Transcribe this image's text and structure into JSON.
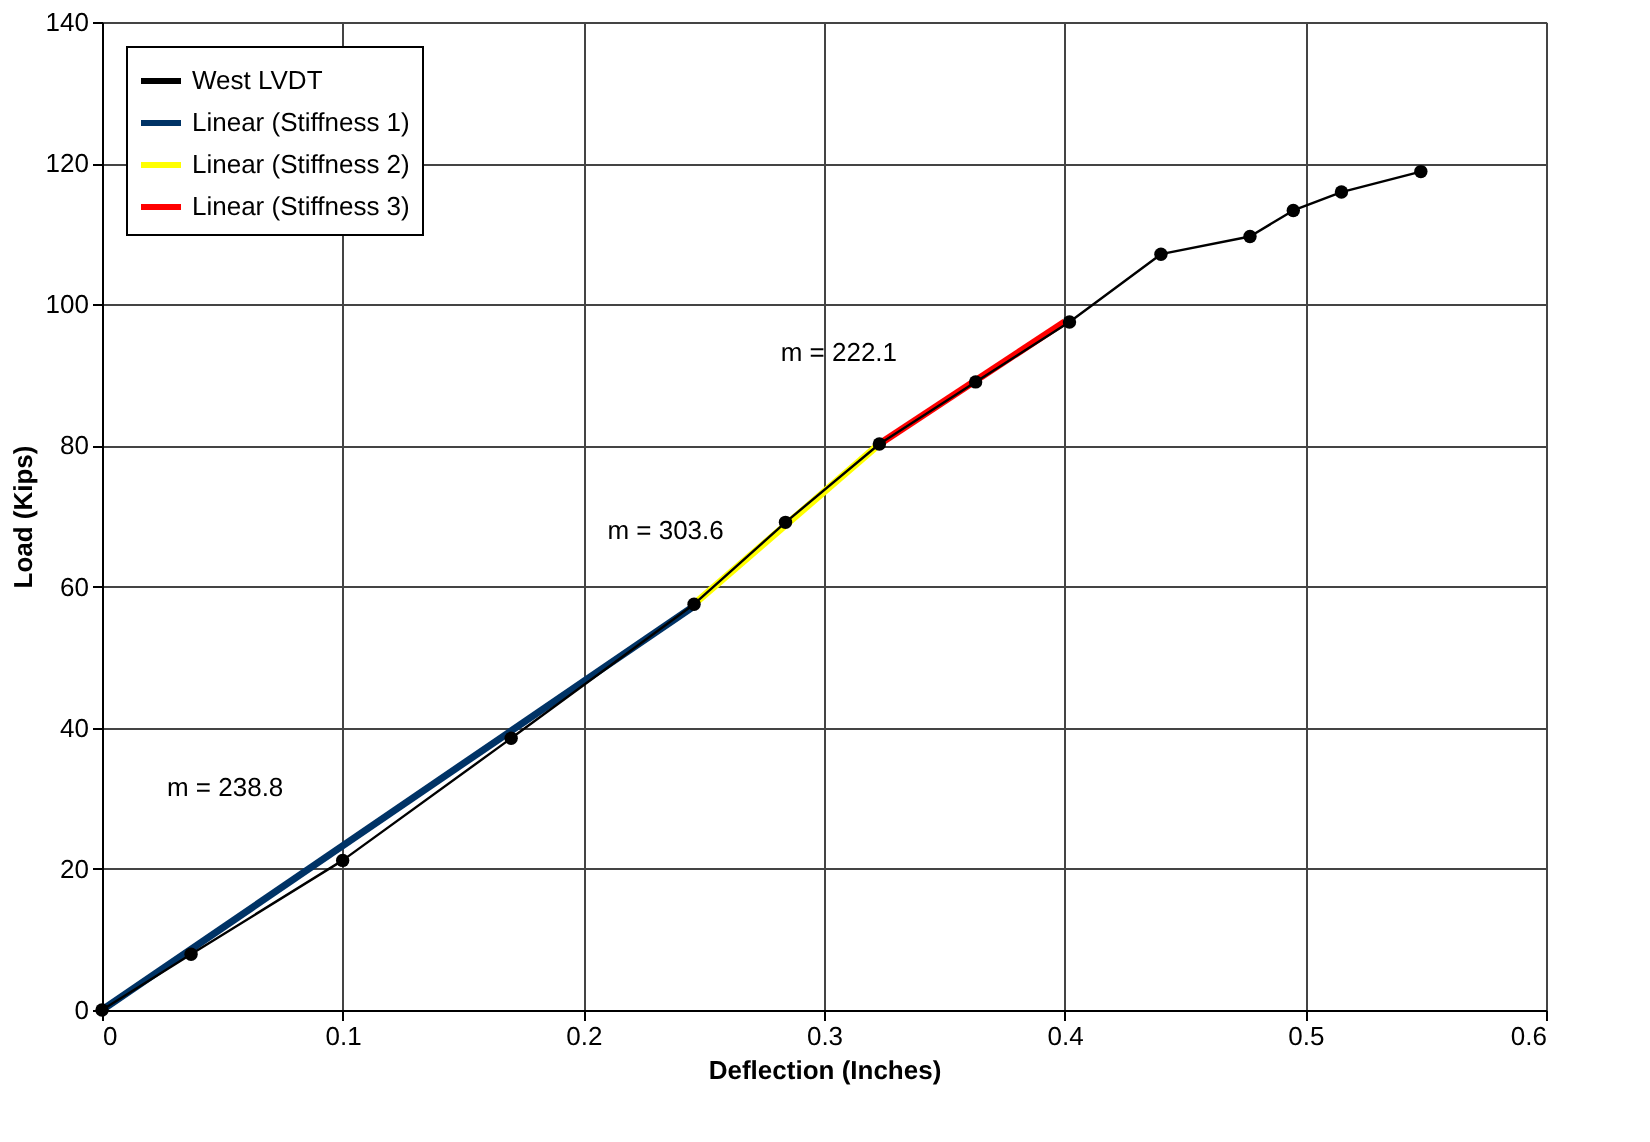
{
  "chart_data": {
    "type": "line",
    "xlabel": "Deflection (Inches)",
    "ylabel": "Load (Kips)",
    "series": [
      {
        "name": "West LVDT",
        "color": "#000000",
        "marker": "circle",
        "x": [
          0,
          0.037,
          0.1,
          0.17,
          0.246,
          0.284,
          0.323,
          0.363,
          0.402,
          0.44,
          0.477,
          0.495,
          0.515,
          0.548
        ],
        "values": [
          0,
          7.9,
          21.2,
          38.5,
          57.5,
          69.1,
          80.2,
          89,
          97.5,
          107.1,
          109.6,
          113.3,
          115.9,
          118.8
        ]
      },
      {
        "name": "Linear (Stiffness 1)",
        "color": "#003366",
        "marker": "none",
        "x": [
          0,
          0.245
        ],
        "values": [
          0,
          57
        ]
      },
      {
        "name": "Linear (Stiffness 2)",
        "color": "#ffff00",
        "marker": "none",
        "x": [
          0.246,
          0.323
        ],
        "values": [
          57.5,
          80.2
        ]
      },
      {
        "name": "Linear (Stiffness 3)",
        "color": "#ff0000",
        "marker": "none",
        "x": [
          0.323,
          0.4
        ],
        "values": [
          80.2,
          97.5
        ]
      }
    ],
    "annotations": [
      "m = 238.8",
      "m = 303.6",
      "m = 222.1"
    ],
    "xlim": [
      0,
      0.6
    ],
    "xticks": [
      0,
      0.1,
      0.2,
      0.3,
      0.4,
      0.5,
      0.6
    ],
    "ylim": [
      0,
      140
    ],
    "yticks": [
      0,
      20,
      40,
      60,
      80,
      100,
      120,
      140
    ],
    "grid": true,
    "legend": "top left"
  }
}
